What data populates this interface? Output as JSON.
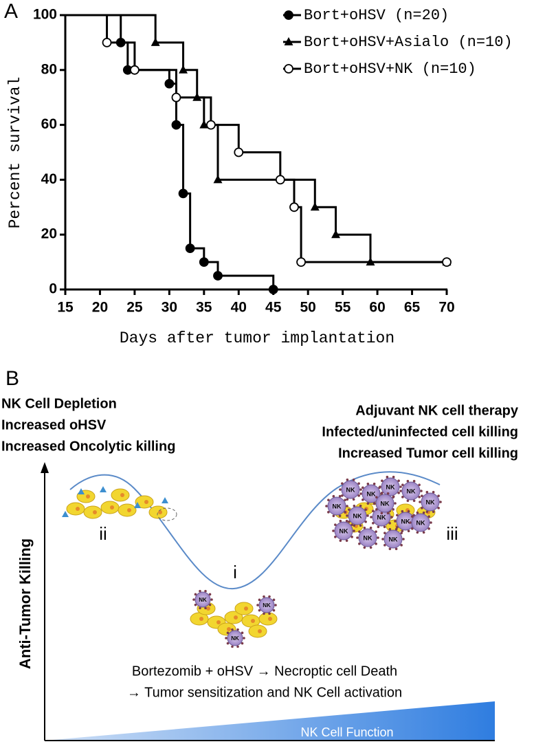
{
  "chart_data": {
    "type": "line",
    "step": "post",
    "panel_label": "A",
    "xlabel": "Days after tumor implantation",
    "ylabel": "Percent survival",
    "xlim": [
      15,
      70
    ],
    "ylim": [
      0,
      100
    ],
    "xticks": [
      15,
      20,
      25,
      30,
      35,
      40,
      45,
      50,
      55,
      60,
      65,
      70
    ],
    "yticks": [
      0,
      20,
      40,
      60,
      80,
      100
    ],
    "legend": "upper right",
    "series": [
      {
        "name": "Bort+oHSV (n=20)",
        "color": "#000000",
        "marker": "filled-circle",
        "x": [
          15,
          23,
          24,
          30,
          31,
          32,
          33,
          35,
          37,
          45
        ],
        "values": [
          100,
          90,
          80,
          75,
          60,
          35,
          15,
          10,
          5,
          0
        ]
      },
      {
        "name": "Bort+oHSV+Asialo (n=10)",
        "color": "#000000",
        "marker": "triangle",
        "x": [
          15,
          28,
          32,
          34,
          35,
          37,
          51,
          54,
          59,
          70
        ],
        "values": [
          100,
          90,
          80,
          70,
          60,
          40,
          30,
          20,
          10,
          10
        ]
      },
      {
        "name": "Bort+oHSV+NK (n=10)",
        "color": "#000000",
        "marker": "open-circle",
        "x": [
          15,
          21,
          25,
          31,
          36,
          40,
          46,
          48,
          49,
          70
        ],
        "values": [
          100,
          90,
          80,
          70,
          60,
          50,
          40,
          30,
          10,
          10
        ]
      }
    ]
  },
  "diagram": {
    "panel_label": "B",
    "left_notes": [
      "NK Cell Depletion",
      "Increased oHSV",
      "Increased Oncolytic killing"
    ],
    "right_notes": [
      "Adjuvant NK cell therapy",
      "Infected/uninfected cell killing",
      "Increased Tumor cell killing"
    ],
    "stages": [
      "i",
      "ii",
      "iii"
    ],
    "y_axis_label": "Anti-Tumor Killing",
    "x_axis_label": "NK Cell Function",
    "caption": [
      "Bortezomib + oHSV → Necroptic cell Death",
      "→ Tumor sensitization and NK Cell activation"
    ],
    "cell_label": "NK"
  }
}
